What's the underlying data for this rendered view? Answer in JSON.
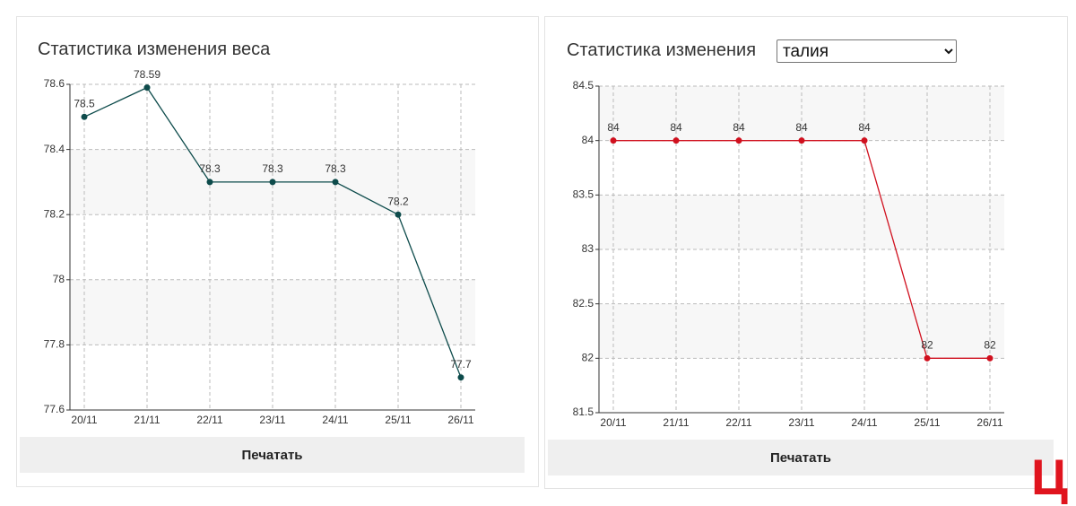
{
  "chart_data": [
    {
      "type": "line",
      "title": "Статистика изменения веса",
      "categories": [
        "20/11",
        "21/11",
        "22/11",
        "23/11",
        "24/11",
        "25/11",
        "26/11"
      ],
      "values": [
        78.5,
        78.59,
        78.3,
        78.3,
        78.3,
        78.2,
        77.7
      ],
      "color": "#0d4b4b",
      "ylim": [
        77.6,
        78.6
      ],
      "yticks": [
        77.6,
        77.8,
        78,
        78.2,
        78.4,
        78.6
      ],
      "grid": true
    },
    {
      "type": "line",
      "title": "Статистика изменения",
      "categories": [
        "20/11",
        "21/11",
        "22/11",
        "23/11",
        "24/11",
        "25/11",
        "26/11"
      ],
      "values": [
        84,
        84,
        84,
        84,
        84,
        82,
        82
      ],
      "color": "#d0101e",
      "ylim": [
        81.5,
        84.5
      ],
      "yticks": [
        81.5,
        82,
        82.5,
        83,
        83.5,
        84,
        84.5
      ],
      "grid": true
    }
  ],
  "controls": {
    "select_value": "талия",
    "print_buttons": [
      "Печатать",
      "Печатать"
    ]
  },
  "logo": "Ц"
}
